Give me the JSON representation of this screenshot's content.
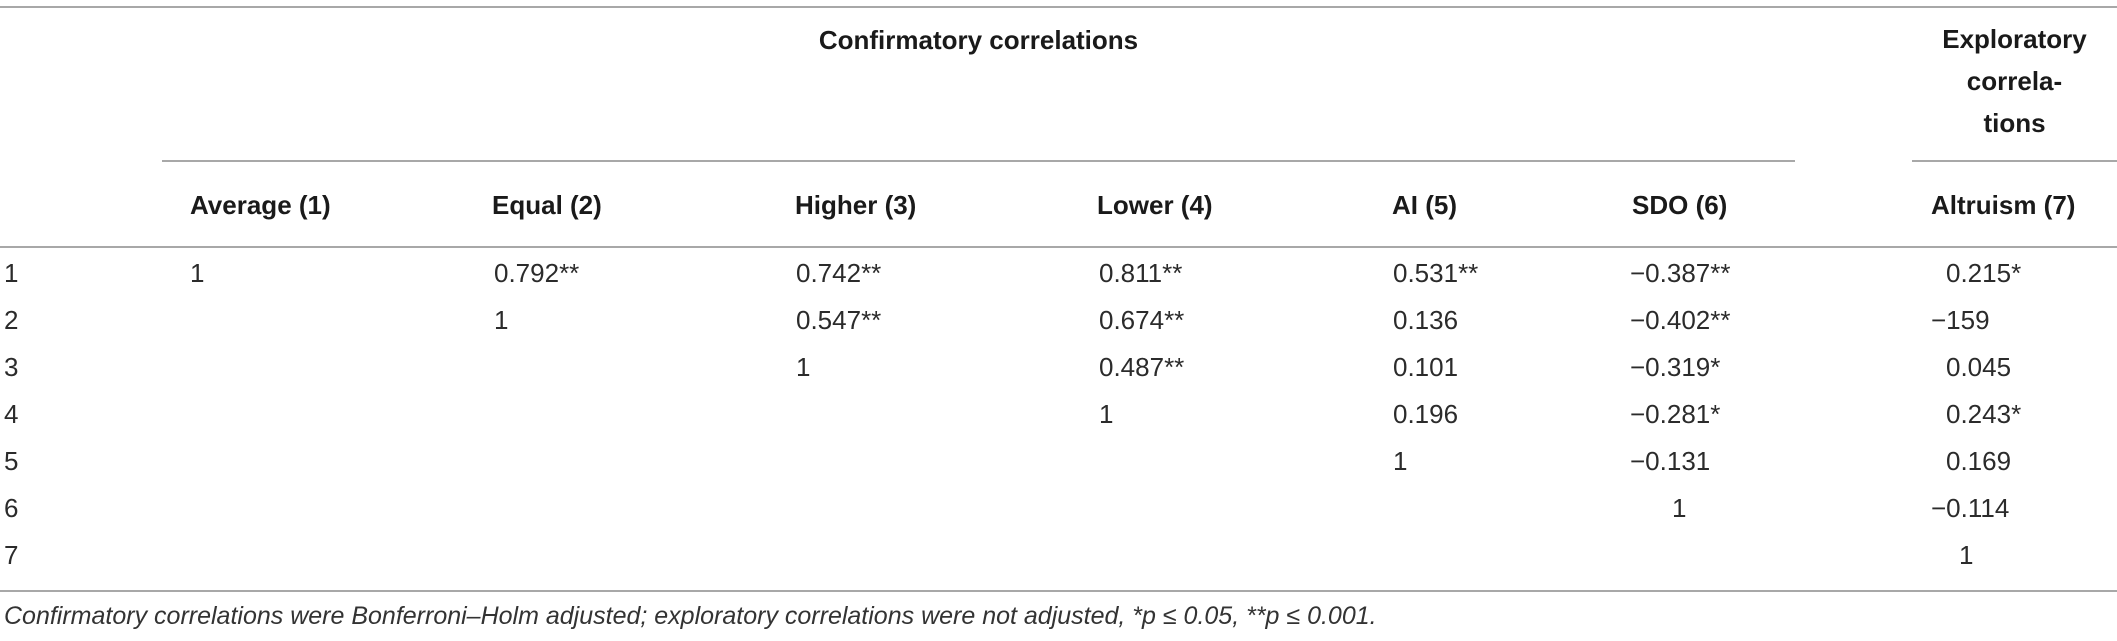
{
  "group_headers": {
    "confirmatory": "Confirmatory correlations",
    "exploratory_line1": "Exploratory",
    "exploratory_line2": "correla-",
    "exploratory_line3": "tions"
  },
  "columns": [
    "Average (1)",
    "Equal (2)",
    "Higher (3)",
    "Lower (4)",
    "AI (5)",
    "SDO (6)",
    "Altruism (7)"
  ],
  "rows": [
    {
      "label": "1",
      "cells": [
        "1",
        "0.792**",
        "0.742**",
        "0.811**",
        "0.531**",
        "−0.387**",
        "0.215*"
      ]
    },
    {
      "label": "2",
      "cells": [
        "",
        "1",
        "0.547**",
        "0.674**",
        "0.136",
        "−0.402**",
        "−159"
      ]
    },
    {
      "label": "3",
      "cells": [
        "",
        "",
        "1",
        "0.487**",
        "0.101",
        "−0.319*",
        "0.045"
      ]
    },
    {
      "label": "4",
      "cells": [
        "",
        "",
        "",
        "1",
        "0.196",
        "−0.281*",
        "0.243*"
      ]
    },
    {
      "label": "5",
      "cells": [
        "",
        "",
        "",
        "",
        "1",
        "−0.131",
        "0.169"
      ]
    },
    {
      "label": "6",
      "cells": [
        "",
        "",
        "",
        "",
        "",
        "1",
        "−0.114"
      ]
    },
    {
      "label": "7",
      "cells": [
        "",
        "",
        "",
        "",
        "",
        "",
        "1"
      ]
    }
  ],
  "footnote": "Confirmatory correlations were Bonferroni–Holm adjusted; exploratory correlations were not adjusted, *p ≤ 0.05, **p ≤ 0.001."
}
